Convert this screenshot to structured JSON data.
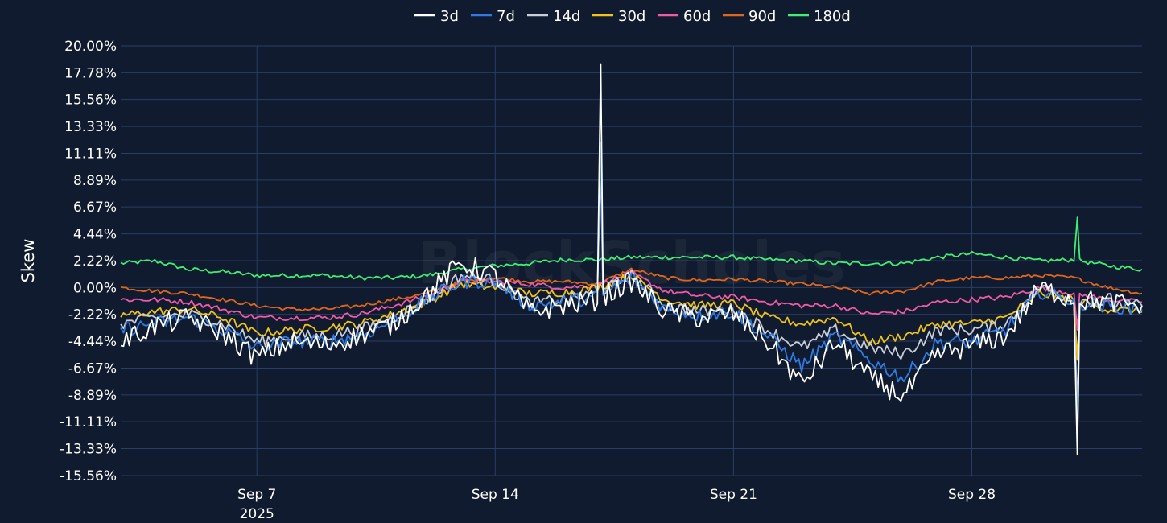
{
  "chart_data": {
    "type": "line",
    "title": "",
    "watermark": "BlockScholes",
    "ylabel": "Skew",
    "xlabel": "",
    "x_range": [
      "2025-09-03",
      "2025-10-03"
    ],
    "ylim": [
      -15.56,
      20.0
    ],
    "y_ticks": [
      20.0,
      17.78,
      15.56,
      13.33,
      11.11,
      8.89,
      6.67,
      4.44,
      2.22,
      0.0,
      -2.22,
      -4.44,
      -6.67,
      -8.89,
      -11.11,
      -13.33,
      -15.56
    ],
    "y_tick_labels": [
      "20.00%",
      "17.78%",
      "15.56%",
      "13.33%",
      "11.11%",
      "8.89%",
      "6.67%",
      "4.44%",
      "2.22%",
      "0.00%",
      "-2.22%",
      "-4.44%",
      "-6.67%",
      "-8.89%",
      "-11.11%",
      "-13.33%",
      "-15.56%"
    ],
    "x_ticks": [
      {
        "date": "2025-09-07",
        "label": "Sep 7",
        "sublabel": "2025"
      },
      {
        "date": "2025-09-14",
        "label": "Sep 14",
        "sublabel": ""
      },
      {
        "date": "2025-09-21",
        "label": "Sep 21",
        "sublabel": ""
      },
      {
        "date": "2025-09-28",
        "label": "Sep 28",
        "sublabel": ""
      }
    ],
    "grid": true,
    "legend_position": "top-center",
    "x": [
      "2025-09-03",
      "2025-09-04",
      "2025-09-05",
      "2025-09-06",
      "2025-09-07",
      "2025-09-08",
      "2025-09-09",
      "2025-09-10",
      "2025-09-11",
      "2025-09-12",
      "2025-09-13",
      "2025-09-14",
      "2025-09-15",
      "2025-09-16",
      "2025-09-17",
      "2025-09-18",
      "2025-09-19",
      "2025-09-20",
      "2025-09-21",
      "2025-09-22",
      "2025-09-23",
      "2025-09-24",
      "2025-09-25",
      "2025-09-26",
      "2025-09-27",
      "2025-09-28",
      "2025-09-29",
      "2025-09-30",
      "2025-10-01",
      "2025-10-02",
      "2025-10-03"
    ],
    "series": [
      {
        "name": "3d",
        "color": "#ffffff",
        "values": [
          -4.5,
          -3.2,
          -2.5,
          -3.8,
          -5.8,
          -4.5,
          -4.8,
          -4.0,
          -3.0,
          -0.5,
          2.0,
          1.0,
          -2.0,
          -1.5,
          -1.0,
          0.5,
          -2.0,
          -2.5,
          -2.2,
          -4.5,
          -8.0,
          -4.5,
          -7.5,
          -9.0,
          -5.5,
          -4.8,
          -4.0,
          0.0,
          -1.0,
          -1.2,
          -1.5
        ],
        "annotations": [
          {
            "x": "2025-09-17",
            "y": 18.5
          },
          {
            "x": "2025-10-01",
            "y": -13.8
          }
        ]
      },
      {
        "name": "7d",
        "color": "#2f7be6",
        "values": [
          -3.5,
          -3.0,
          -2.5,
          -3.5,
          -5.0,
          -4.5,
          -4.5,
          -4.0,
          -2.8,
          -1.0,
          0.5,
          0.5,
          -1.5,
          -1.2,
          -0.8,
          0.8,
          -1.8,
          -2.3,
          -2.0,
          -4.0,
          -6.5,
          -4.0,
          -6.0,
          -7.5,
          -4.5,
          -4.5,
          -3.5,
          -0.3,
          -1.2,
          -1.5,
          -1.8
        ],
        "annotations": [
          {
            "x": "2025-09-17",
            "y": 12.0
          },
          {
            "x": "2025-10-01",
            "y": -12.5
          }
        ]
      },
      {
        "name": "14d",
        "color": "#c9cfd8",
        "values": [
          -3.0,
          -2.5,
          -2.2,
          -3.0,
          -4.5,
          -4.0,
          -4.0,
          -3.5,
          -2.5,
          -1.0,
          1.0,
          0.6,
          -1.3,
          -1.0,
          -0.5,
          1.0,
          -1.5,
          -2.0,
          -1.8,
          -3.5,
          -5.0,
          -3.5,
          -5.0,
          -5.5,
          -3.5,
          -3.5,
          -3.0,
          0.0,
          -1.0,
          -1.3,
          -1.5
        ],
        "annotations": [
          {
            "x": "2025-09-17",
            "y": 10.0
          },
          {
            "x": "2025-10-01",
            "y": -10.0
          }
        ]
      },
      {
        "name": "30d",
        "color": "#f2c318",
        "values": [
          -2.3,
          -2.0,
          -1.8,
          -2.5,
          -3.8,
          -3.5,
          -3.3,
          -3.0,
          -2.2,
          -1.2,
          0.3,
          0.0,
          -0.5,
          -0.4,
          0.0,
          1.0,
          -1.0,
          -1.5,
          -1.3,
          -2.5,
          -3.0,
          -2.5,
          -4.5,
          -4.0,
          -3.0,
          -3.0,
          -2.5,
          -0.5,
          -1.0,
          -1.8,
          -2.0
        ],
        "annotations": [
          {
            "x": "2025-10-01",
            "y": -6.0
          }
        ]
      },
      {
        "name": "60d",
        "color": "#f25aa6",
        "values": [
          -1.0,
          -1.0,
          -1.2,
          -1.8,
          -2.5,
          -2.5,
          -2.5,
          -2.2,
          -1.5,
          -0.7,
          0.5,
          0.5,
          0.3,
          0.0,
          0.2,
          1.2,
          -0.3,
          -0.7,
          -0.8,
          -1.2,
          -1.5,
          -1.5,
          -2.2,
          -2.0,
          -1.2,
          -1.0,
          -0.8,
          0.0,
          -0.5,
          -1.0,
          -1.2
        ],
        "annotations": [
          {
            "x": "2025-10-01",
            "y": -3.5
          }
        ]
      },
      {
        "name": "90d",
        "color": "#e0661c",
        "values": [
          0.0,
          -0.3,
          -0.5,
          -1.0,
          -1.5,
          -1.8,
          -1.8,
          -1.5,
          -1.0,
          -0.5,
          0.5,
          0.8,
          0.5,
          0.5,
          0.3,
          1.5,
          0.8,
          0.6,
          0.7,
          0.5,
          0.3,
          0.0,
          -0.5,
          -0.3,
          0.5,
          0.8,
          0.8,
          1.0,
          0.8,
          0.0,
          -0.5
        ],
        "annotations": []
      },
      {
        "name": "180d",
        "color": "#3ef070",
        "values": [
          2.0,
          2.2,
          1.5,
          1.3,
          1.0,
          1.0,
          1.0,
          0.8,
          0.8,
          1.0,
          1.5,
          1.8,
          2.0,
          2.3,
          2.3,
          2.5,
          2.5,
          2.5,
          2.5,
          2.3,
          2.2,
          2.0,
          2.0,
          2.0,
          2.5,
          2.8,
          2.5,
          2.2,
          2.3,
          1.8,
          1.5
        ],
        "annotations": [
          {
            "x": "2025-10-01",
            "y": 5.8
          }
        ]
      }
    ]
  }
}
